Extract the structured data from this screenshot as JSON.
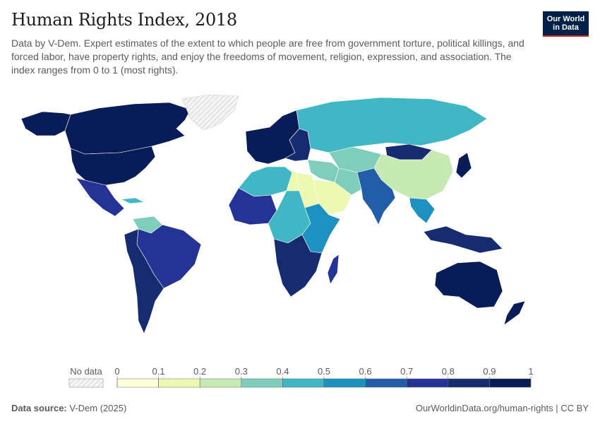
{
  "header": {
    "title": "Human Rights Index, 2018",
    "subtitle": "Data by V-Dem. Expert estimates of the extent to which people are free from government torture, political killings, and forced labor, have property rights, and enjoy the freedoms of movement, religion, expression, and association. The index ranges from 0 to 1 (most rights).",
    "logo_line1": "Our World",
    "logo_line2": "in Data",
    "brand_color": "#002147",
    "brand_accent": "#ce261e"
  },
  "legend": {
    "no_data_label": "No data",
    "ticks": [
      "0",
      "0.1",
      "0.2",
      "0.3",
      "0.4",
      "0.5",
      "0.6",
      "0.7",
      "0.8",
      "0.9",
      "1"
    ],
    "bins": [
      {
        "min": 0.0,
        "max": 0.1,
        "color": "#ffffd9"
      },
      {
        "min": 0.1,
        "max": 0.2,
        "color": "#edf8b1"
      },
      {
        "min": 0.2,
        "max": 0.3,
        "color": "#c7e9b4"
      },
      {
        "min": 0.3,
        "max": 0.4,
        "color": "#7fcdbb"
      },
      {
        "min": 0.4,
        "max": 0.5,
        "color": "#41b6c4"
      },
      {
        "min": 0.5,
        "max": 0.6,
        "color": "#1d91c0"
      },
      {
        "min": 0.6,
        "max": 0.7,
        "color": "#225ea8"
      },
      {
        "min": 0.7,
        "max": 0.8,
        "color": "#253494"
      },
      {
        "min": 0.8,
        "max": 0.9,
        "color": "#172b70"
      },
      {
        "min": 0.9,
        "max": 1.0,
        "color": "#081d58"
      }
    ]
  },
  "map": {
    "regions": [
      {
        "name": "Canada",
        "value": 0.94
      },
      {
        "name": "United States",
        "value": 0.91
      },
      {
        "name": "Alaska",
        "value": 0.91
      },
      {
        "name": "Greenland",
        "value": null
      },
      {
        "name": "Mexico",
        "value": 0.73
      },
      {
        "name": "Cuba",
        "value": 0.42
      },
      {
        "name": "Venezuela",
        "value": 0.34
      },
      {
        "name": "Brazil",
        "value": 0.78
      },
      {
        "name": "Southern Cone",
        "value": 0.88
      },
      {
        "name": "Western Europe",
        "value": 0.95
      },
      {
        "name": "Eastern Europe",
        "value": 0.8
      },
      {
        "name": "Russia",
        "value": 0.43
      },
      {
        "name": "Central Asia",
        "value": 0.35
      },
      {
        "name": "China",
        "value": 0.22
      },
      {
        "name": "Mongolia",
        "value": 0.86
      },
      {
        "name": "Japan",
        "value": 0.95
      },
      {
        "name": "Middle East",
        "value": 0.38
      },
      {
        "name": "Saudi Arabia",
        "value": 0.19
      },
      {
        "name": "Iran",
        "value": 0.3
      },
      {
        "name": "India",
        "value": 0.62
      },
      {
        "name": "Southeast Asia",
        "value": 0.55
      },
      {
        "name": "Indonesia",
        "value": 0.82
      },
      {
        "name": "Australia",
        "value": 0.95
      },
      {
        "name": "New Zealand",
        "value": 0.96
      },
      {
        "name": "North Africa",
        "value": 0.4
      },
      {
        "name": "Libya",
        "value": 0.14
      },
      {
        "name": "Egypt",
        "value": 0.18
      },
      {
        "name": "West Africa",
        "value": 0.72
      },
      {
        "name": "Central Africa",
        "value": 0.45
      },
      {
        "name": "East Africa",
        "value": 0.5
      },
      {
        "name": "Southern Africa",
        "value": 0.83
      },
      {
        "name": "Madagascar",
        "value": 0.77
      }
    ]
  },
  "footer": {
    "source_label": "Data source:",
    "source_value": "V-Dem (2025)",
    "right_text": "OurWorldinData.org/human-rights | CC BY"
  }
}
